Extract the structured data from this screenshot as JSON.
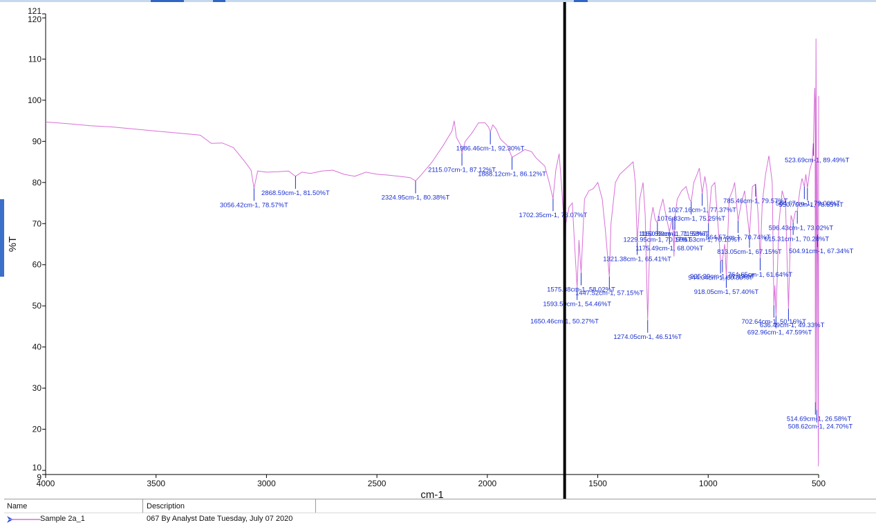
{
  "chart_data": {
    "type": "line",
    "xlabel": "cm-1",
    "ylabel": "%T",
    "xlim": [
      4000,
      500
    ],
    "ylim": [
      9,
      121
    ],
    "x_ticks": [
      4000,
      3500,
      3000,
      2500,
      2000,
      1500,
      1000,
      500
    ],
    "y_ticks": [
      9,
      10,
      20,
      30,
      40,
      50,
      60,
      70,
      80,
      90,
      100,
      110,
      120,
      121
    ],
    "grid": false,
    "line_color": "#d86fd8",
    "annotation_color": "#1a2fd0",
    "cursor_line_x": 1650,
    "series": [
      {
        "name": "Sample 2a_1",
        "points": [
          [
            4000,
            94.7
          ],
          [
            3900,
            94.3
          ],
          [
            3800,
            93.8
          ],
          [
            3700,
            93.5
          ],
          [
            3600,
            93.0
          ],
          [
            3500,
            92.5
          ],
          [
            3400,
            92.0
          ],
          [
            3300,
            91.5
          ],
          [
            3250,
            89.5
          ],
          [
            3200,
            89.6
          ],
          [
            3150,
            88.5
          ],
          [
            3100,
            85.2
          ],
          [
            3070,
            83.0
          ],
          [
            3056.42,
            78.57
          ],
          [
            3040,
            82.8
          ],
          [
            3000,
            82.5
          ],
          [
            2950,
            82.6
          ],
          [
            2900,
            82.8
          ],
          [
            2868.59,
            81.5
          ],
          [
            2840,
            82.5
          ],
          [
            2800,
            82.2
          ],
          [
            2750,
            82.8
          ],
          [
            2700,
            83.0
          ],
          [
            2650,
            82.0
          ],
          [
            2600,
            81.5
          ],
          [
            2550,
            82.5
          ],
          [
            2500,
            82.0
          ],
          [
            2450,
            81.8
          ],
          [
            2400,
            81.5
          ],
          [
            2350,
            81.2
          ],
          [
            2324.95,
            80.38
          ],
          [
            2300,
            81.8
          ],
          [
            2250,
            85.0
          ],
          [
            2200,
            89.0
          ],
          [
            2160,
            92.5
          ],
          [
            2150,
            95.0
          ],
          [
            2140,
            91.0
          ],
          [
            2120,
            89.0
          ],
          [
            2115.07,
            87.12
          ],
          [
            2100,
            90.0
          ],
          [
            2070,
            92.0
          ],
          [
            2040,
            94.5
          ],
          [
            2010,
            94.5
          ],
          [
            1995,
            93.5
          ],
          [
            1986.46,
            92.3
          ],
          [
            1975,
            94.0
          ],
          [
            1960,
            93.0
          ],
          [
            1940,
            90.5
          ],
          [
            1910,
            89.0
          ],
          [
            1888.12,
            86.12
          ],
          [
            1860,
            87.0
          ],
          [
            1830,
            88.0
          ],
          [
            1800,
            87.5
          ],
          [
            1780,
            86.0
          ],
          [
            1760,
            85.0
          ],
          [
            1740,
            84.0
          ],
          [
            1720,
            80.0
          ],
          [
            1702.35,
            76.07
          ],
          [
            1690,
            83.0
          ],
          [
            1675,
            87.0
          ],
          [
            1665,
            80.0
          ],
          [
            1655,
            72.0
          ],
          [
            1650.46,
            50.27
          ],
          [
            1645,
            70.0
          ],
          [
            1630,
            74.0
          ],
          [
            1615,
            75.0
          ],
          [
            1605,
            65.0
          ],
          [
            1593.5,
            54.46
          ],
          [
            1585,
            66.0
          ],
          [
            1575.38,
            58.02
          ],
          [
            1560,
            76.0
          ],
          [
            1540,
            78.0
          ],
          [
            1520,
            78.5
          ],
          [
            1500,
            80.0
          ],
          [
            1480,
            76.0
          ],
          [
            1465,
            68.0
          ],
          [
            1447.52,
            57.15
          ],
          [
            1440,
            70.0
          ],
          [
            1420,
            80.0
          ],
          [
            1400,
            82.0
          ],
          [
            1380,
            83.0
          ],
          [
            1360,
            84.0
          ],
          [
            1340,
            85.0
          ],
          [
            1330,
            80.0
          ],
          [
            1321.38,
            65.41
          ],
          [
            1310,
            76.0
          ],
          [
            1295,
            80.0
          ],
          [
            1285,
            72.0
          ],
          [
            1274.05,
            46.51
          ],
          [
            1262,
            70.0
          ],
          [
            1250,
            74.0
          ],
          [
            1240,
            71.0
          ],
          [
            1229.95,
            70.17
          ],
          [
            1220,
            73.0
          ],
          [
            1205,
            76.0
          ],
          [
            1195,
            73.0
          ],
          [
            1175.49,
            68.0
          ],
          [
            1168,
            70.0
          ],
          [
            1160.53,
            71.59
          ],
          [
            1155,
            62.0
          ],
          [
            1150.8,
            71.53
          ],
          [
            1140,
            76.0
          ],
          [
            1120,
            78.0
          ],
          [
            1100,
            79.0
          ],
          [
            1085,
            76.0
          ],
          [
            1076.83,
            75.25
          ],
          [
            1065,
            80.0
          ],
          [
            1050,
            82.0
          ],
          [
            1040,
            83.5
          ],
          [
            1027.16,
            77.37
          ],
          [
            1015,
            81.5
          ],
          [
            1005,
            78.0
          ],
          [
            998.63,
            70.1
          ],
          [
            985,
            79.0
          ],
          [
            970,
            80.0
          ],
          [
            960,
            73.0
          ],
          [
            944.04,
            60.89
          ],
          [
            935.39,
            61.19
          ],
          [
            925,
            65.0
          ],
          [
            918.05,
            57.4
          ],
          [
            905,
            76.0
          ],
          [
            890,
            78.0
          ],
          [
            880,
            80.0
          ],
          [
            864.57,
            70.74
          ],
          [
            850,
            75.0
          ],
          [
            835,
            78.0
          ],
          [
            813.05,
            67.15
          ],
          [
            800,
            79.0
          ],
          [
            785.46,
            79.57
          ],
          [
            775,
            73.0
          ],
          [
            764.65,
            61.64
          ],
          [
            755,
            75.0
          ],
          [
            740,
            82.0
          ],
          [
            725,
            86.5
          ],
          [
            710,
            80.0
          ],
          [
            702.64,
            50.16
          ],
          [
            698,
            55.0
          ],
          [
            692.96,
            47.59
          ],
          [
            680,
            70.0
          ],
          [
            665,
            78.0
          ],
          [
            650,
            75.0
          ],
          [
            636.49,
            49.33
          ],
          [
            625,
            72.0
          ],
          [
            615.31,
            70.28
          ],
          [
            605,
            73.0
          ],
          [
            596.43,
            73.02
          ],
          [
            585,
            78.0
          ],
          [
            575,
            81.0
          ],
          [
            564.67,
            79.0
          ],
          [
            558,
            82.0
          ],
          [
            550.7,
            78.65
          ],
          [
            540,
            83.0
          ],
          [
            530,
            85.0
          ],
          [
            523.69,
            89.49
          ],
          [
            518,
            103.0
          ],
          [
            516,
            100.0
          ],
          [
            514.69,
            26.58
          ],
          [
            512,
            115.0
          ],
          [
            510,
            90.0
          ],
          [
            508.62,
            24.7
          ],
          [
            506,
            85.0
          ],
          [
            504.91,
            67.34
          ],
          [
            503,
            60.0
          ],
          [
            502,
            20.0
          ],
          [
            501,
            11.0
          ],
          [
            500,
            101.0
          ]
        ]
      }
    ],
    "annotations": [
      {
        "x": 3056.42,
        "y": 78.57,
        "label": "3056.42cm-1, 78.57%T"
      },
      {
        "x": 2868.59,
        "y": 81.5,
        "label": "2868.59cm-1, 81.50%T"
      },
      {
        "x": 2324.95,
        "y": 80.38,
        "label": "2324.95cm-1, 80.38%T"
      },
      {
        "x": 2115.07,
        "y": 87.12,
        "label": "2115.07cm-1, 87.12%T"
      },
      {
        "x": 1986.46,
        "y": 92.3,
        "label": "1986.46cm-1, 92.30%T"
      },
      {
        "x": 1888.12,
        "y": 86.12,
        "label": "1888.12cm-1, 86.12%T"
      },
      {
        "x": 1702.35,
        "y": 76.07,
        "label": "1702.35cm-1, 76.07%T"
      },
      {
        "x": 1650.46,
        "y": 50.27,
        "label": "1650.46cm-1, 50.27%T"
      },
      {
        "x": 1593.5,
        "y": 54.46,
        "label": "1593.50cm-1, 54.46%T"
      },
      {
        "x": 1575.38,
        "y": 58.02,
        "label": "1575.38cm-1, 58.02%T"
      },
      {
        "x": 1447.52,
        "y": 57.15,
        "label": "1447.52cm-1, 57.15%T"
      },
      {
        "x": 1321.38,
        "y": 65.41,
        "label": "1321.38cm-1, 65.41%T"
      },
      {
        "x": 1274.05,
        "y": 46.51,
        "label": "1274.05cm-1, 46.51%T"
      },
      {
        "x": 1229.95,
        "y": 70.17,
        "label": "1229.95cm-1, 70.17%T"
      },
      {
        "x": 1175.49,
        "y": 68.0,
        "label": "1175.49cm-1, 68.00%T"
      },
      {
        "x": 1160.53,
        "y": 71.59,
        "label": "1160.53cm-1, 71.59%T"
      },
      {
        "x": 1150.8,
        "y": 71.53,
        "label": "1150.80cm-1, 71.53%T"
      },
      {
        "x": 1076.83,
        "y": 75.25,
        "label": "1076.83cm-1, 75.25%T"
      },
      {
        "x": 1027.16,
        "y": 77.37,
        "label": "1027.16cm-1, 77.37%T"
      },
      {
        "x": 998.63,
        "y": 70.1,
        "label": "998.63cm-1, 70.10%T"
      },
      {
        "x": 944.04,
        "y": 60.89,
        "label": "944.04cm-1, 60.89%T"
      },
      {
        "x": 935.39,
        "y": 61.19,
        "label": "935.39cm-1, 61.19%T"
      },
      {
        "x": 918.05,
        "y": 57.4,
        "label": "918.05cm-1, 57.40%T"
      },
      {
        "x": 864.57,
        "y": 70.74,
        "label": "864.57cm-1, 70.74%T"
      },
      {
        "x": 813.05,
        "y": 67.15,
        "label": "813.05cm-1, 67.15%T"
      },
      {
        "x": 785.46,
        "y": 79.57,
        "label": "785.46cm-1, 79.57%T"
      },
      {
        "x": 764.65,
        "y": 61.64,
        "label": "764.65cm-1, 61.64%T"
      },
      {
        "x": 702.64,
        "y": 50.16,
        "label": "702.64cm-1, 50.16%T"
      },
      {
        "x": 692.96,
        "y": 47.59,
        "label": "692.96cm-1, 47.59%T"
      },
      {
        "x": 636.49,
        "y": 49.33,
        "label": "636.49cm-1, 49.33%T"
      },
      {
        "x": 615.31,
        "y": 70.28,
        "label": "615.31cm-1, 70.28%T"
      },
      {
        "x": 596.43,
        "y": 73.02,
        "label": "596.43cm-1, 73.02%T"
      },
      {
        "x": 564.67,
        "y": 79.0,
        "label": "564.67cm-1, 79.00%T"
      },
      {
        "x": 550.7,
        "y": 78.65,
        "label": "550.70cm-1, 78.65%T"
      },
      {
        "x": 523.69,
        "y": 89.49,
        "label": "523.69cm-1, 89.49%T"
      },
      {
        "x": 514.69,
        "y": 26.58,
        "label": "514.69cm-1, 26.58%T"
      },
      {
        "x": 508.62,
        "y": 24.7,
        "label": "508.62cm-1, 24.70%T"
      },
      {
        "x": 504.91,
        "y": 67.34,
        "label": "504.91cm-1, 67.34%T"
      }
    ]
  },
  "legend": {
    "headers": {
      "name": "Name",
      "description": "Description"
    },
    "rows": [
      {
        "name": "Sample 2a_1",
        "description": "067 By Analyst Date Tuesday, July 07 2020",
        "color": "#d86fd8"
      }
    ]
  }
}
